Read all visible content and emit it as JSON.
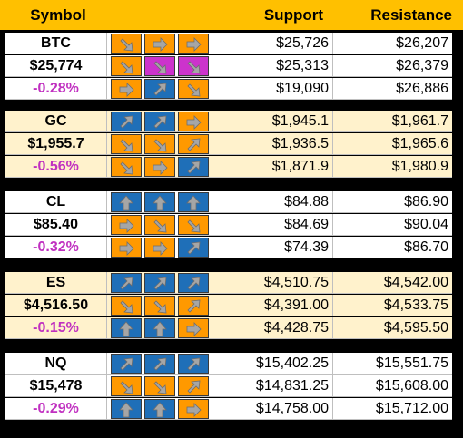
{
  "header": {
    "symbol": "Symbol",
    "support": "Support",
    "resistance": "Resistance"
  },
  "colors": {
    "header_bg": "#ffc000",
    "section_bg_white": "#ffffff",
    "section_bg_cream": "#fff2cc",
    "change_text": "#c030c0",
    "tile_orange": "#ff9900",
    "tile_blue": "#1f6fb8",
    "tile_magenta": "#cc33cc",
    "arrow_gray": "#a6a6a6"
  },
  "sections": [
    {
      "symbol": "BTC",
      "price": "$25,774",
      "change": "-0.28%",
      "bg": "white",
      "rows": [
        {
          "tiles": [
            [
              "down-right",
              "orange"
            ],
            [
              "right",
              "orange"
            ],
            [
              "right",
              "orange"
            ]
          ],
          "support": "$25,726",
          "resistance": "$26,207"
        },
        {
          "tiles": [
            [
              "down-right",
              "orange"
            ],
            [
              "down-right",
              "magenta"
            ],
            [
              "down-right",
              "magenta"
            ]
          ],
          "support": "$25,313",
          "resistance": "$26,379"
        },
        {
          "tiles": [
            [
              "right",
              "orange"
            ],
            [
              "up-right",
              "blue"
            ],
            [
              "down-right",
              "orange"
            ]
          ],
          "support": "$19,090",
          "resistance": "$26,886"
        }
      ]
    },
    {
      "symbol": "GC",
      "price": "$1,955.7",
      "change": "-0.56%",
      "bg": "cream",
      "rows": [
        {
          "tiles": [
            [
              "up-right",
              "blue"
            ],
            [
              "up-right",
              "blue"
            ],
            [
              "right",
              "orange"
            ]
          ],
          "support": "$1,945.1",
          "resistance": "$1,961.7"
        },
        {
          "tiles": [
            [
              "down-right",
              "orange"
            ],
            [
              "down-right",
              "orange"
            ],
            [
              "up-right",
              "orange"
            ]
          ],
          "support": "$1,936.5",
          "resistance": "$1,965.6"
        },
        {
          "tiles": [
            [
              "down-right",
              "orange"
            ],
            [
              "right",
              "orange"
            ],
            [
              "up-right",
              "blue"
            ]
          ],
          "support": "$1,871.9",
          "resistance": "$1,980.9"
        }
      ]
    },
    {
      "symbol": "CL",
      "price": "$85.40",
      "change": "-0.32%",
      "bg": "white",
      "rows": [
        {
          "tiles": [
            [
              "up",
              "blue"
            ],
            [
              "up",
              "blue"
            ],
            [
              "up",
              "blue"
            ]
          ],
          "support": "$84.88",
          "resistance": "$86.90"
        },
        {
          "tiles": [
            [
              "right",
              "orange"
            ],
            [
              "down-right",
              "orange"
            ],
            [
              "down-right",
              "orange"
            ]
          ],
          "support": "$84.69",
          "resistance": "$90.04"
        },
        {
          "tiles": [
            [
              "right",
              "orange"
            ],
            [
              "right",
              "orange"
            ],
            [
              "up-right",
              "blue"
            ]
          ],
          "support": "$74.39",
          "resistance": "$86.70"
        }
      ]
    },
    {
      "symbol": "ES",
      "price": "$4,516.50",
      "change": "-0.15%",
      "bg": "cream",
      "rows": [
        {
          "tiles": [
            [
              "up-right",
              "blue"
            ],
            [
              "up-right",
              "blue"
            ],
            [
              "up-right",
              "blue"
            ]
          ],
          "support": "$4,510.75",
          "resistance": "$4,542.00"
        },
        {
          "tiles": [
            [
              "down-right",
              "orange"
            ],
            [
              "down-right",
              "orange"
            ],
            [
              "up-right",
              "orange"
            ]
          ],
          "support": "$4,391.00",
          "resistance": "$4,533.75"
        },
        {
          "tiles": [
            [
              "up",
              "blue"
            ],
            [
              "up",
              "blue"
            ],
            [
              "right",
              "orange"
            ]
          ],
          "support": "$4,428.75",
          "resistance": "$4,595.50"
        }
      ]
    },
    {
      "symbol": "NQ",
      "price": "$15,478",
      "change": "-0.29%",
      "bg": "white",
      "rows": [
        {
          "tiles": [
            [
              "up-right",
              "blue"
            ],
            [
              "up-right",
              "blue"
            ],
            [
              "up-right",
              "blue"
            ]
          ],
          "support": "$15,402.25",
          "resistance": "$15,551.75"
        },
        {
          "tiles": [
            [
              "down-right",
              "orange"
            ],
            [
              "down-right",
              "orange"
            ],
            [
              "up-right",
              "orange"
            ]
          ],
          "support": "$14,831.25",
          "resistance": "$15,608.00"
        },
        {
          "tiles": [
            [
              "up",
              "blue"
            ],
            [
              "up",
              "blue"
            ],
            [
              "right",
              "orange"
            ]
          ],
          "support": "$14,758.00",
          "resistance": "$15,712.00"
        }
      ]
    }
  ]
}
